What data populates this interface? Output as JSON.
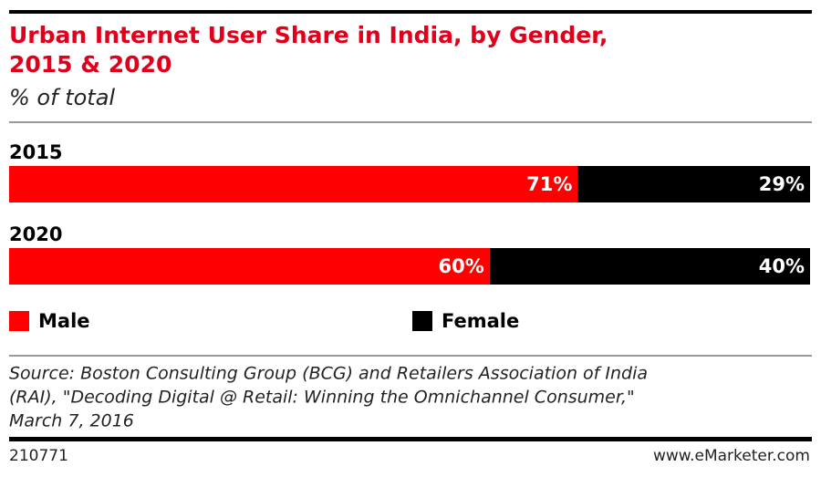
{
  "chart_data": {
    "type": "stacked-bar",
    "orientation": "horizontal",
    "title": [
      "Urban Internet User Share in India, by Gender,",
      "2015 & 2020"
    ],
    "subtitle": "% of total",
    "categories": [
      "2015",
      "2020"
    ],
    "series": [
      {
        "name": "Male",
        "color": "#ff0000",
        "values": [
          71,
          60
        ],
        "value_labels": [
          "71%",
          "60%"
        ]
      },
      {
        "name": "Female",
        "color": "#000000",
        "values": [
          29,
          40
        ],
        "value_labels": [
          "29%",
          "40%"
        ]
      }
    ],
    "source": [
      "Source: Boston Consulting Group (BCG) and Retailers Association of India",
      "(RAI), \"Decoding Digital @ Retail: Winning the Omnichannel Consumer,\"",
      "March 7, 2016"
    ],
    "chart_id": "210771",
    "brand": "www.eMarketer.com"
  }
}
